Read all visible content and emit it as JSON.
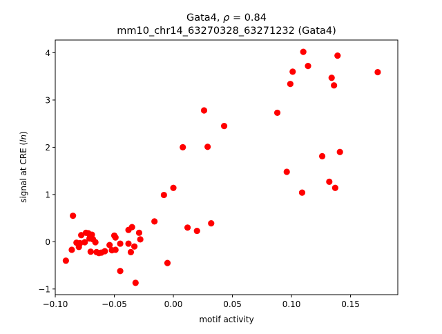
{
  "chart_data": {
    "type": "scatter",
    "title_line1_prefix": "Gata4, ",
    "title_line1_rho": "ρ",
    "title_line1_suffix": " = 0.84",
    "title_line2": "mm10_chr14_63270328_63271232 (Gata4)",
    "xlabel": "motif activity",
    "ylabel_prefix": "signal at CRE (",
    "ylabel_italic": "ln",
    "ylabel_suffix": ")",
    "xlim": [
      -0.1,
      0.19
    ],
    "ylim": [
      -1.12,
      4.27
    ],
    "xticks": [
      -0.1,
      -0.05,
      0.0,
      0.05,
      0.1,
      0.15
    ],
    "xtick_labels": [
      "−0.10",
      "−0.05",
      "0.00",
      "0.05",
      "0.10",
      "0.15"
    ],
    "yticks": [
      -1,
      0,
      1,
      2,
      3,
      4
    ],
    "ytick_labels": [
      "−1",
      "0",
      "1",
      "2",
      "3",
      "4"
    ],
    "grid": false,
    "marker_color": "#ff0000",
    "points": [
      {
        "x": -0.091,
        "y": -0.4
      },
      {
        "x": -0.086,
        "y": -0.17
      },
      {
        "x": -0.085,
        "y": 0.55
      },
      {
        "x": -0.082,
        "y": -0.02
      },
      {
        "x": -0.08,
        "y": -0.11
      },
      {
        "x": -0.079,
        "y": -0.03
      },
      {
        "x": -0.078,
        "y": 0.14
      },
      {
        "x": -0.075,
        "y": -0.01
      },
      {
        "x": -0.074,
        "y": 0.19
      },
      {
        "x": -0.072,
        "y": 0.18
      },
      {
        "x": -0.071,
        "y": 0.07
      },
      {
        "x": -0.07,
        "y": -0.21
      },
      {
        "x": -0.069,
        "y": 0.15
      },
      {
        "x": -0.068,
        "y": 0.05
      },
      {
        "x": -0.066,
        "y": -0.01
      },
      {
        "x": -0.065,
        "y": -0.22
      },
      {
        "x": -0.063,
        "y": -0.24
      },
      {
        "x": -0.061,
        "y": -0.23
      },
      {
        "x": -0.058,
        "y": -0.2
      },
      {
        "x": -0.054,
        "y": -0.07
      },
      {
        "x": -0.052,
        "y": -0.18
      },
      {
        "x": -0.05,
        "y": 0.13
      },
      {
        "x": -0.049,
        "y": 0.09
      },
      {
        "x": -0.049,
        "y": -0.17
      },
      {
        "x": -0.045,
        "y": -0.04
      },
      {
        "x": -0.045,
        "y": -0.62
      },
      {
        "x": -0.038,
        "y": 0.25
      },
      {
        "x": -0.038,
        "y": -0.04
      },
      {
        "x": -0.036,
        "y": -0.22
      },
      {
        "x": -0.035,
        "y": 0.31
      },
      {
        "x": -0.033,
        "y": -0.1
      },
      {
        "x": -0.032,
        "y": -0.87
      },
      {
        "x": -0.029,
        "y": 0.19
      },
      {
        "x": -0.028,
        "y": 0.05
      },
      {
        "x": -0.016,
        "y": 0.43
      },
      {
        "x": -0.008,
        "y": 0.99
      },
      {
        "x": -0.005,
        "y": -0.45
      },
      {
        "x": 0.0,
        "y": 1.14
      },
      {
        "x": 0.008,
        "y": 2.0
      },
      {
        "x": 0.012,
        "y": 0.3
      },
      {
        "x": 0.02,
        "y": 0.23
      },
      {
        "x": 0.026,
        "y": 2.78
      },
      {
        "x": 0.029,
        "y": 2.01
      },
      {
        "x": 0.032,
        "y": 0.39
      },
      {
        "x": 0.043,
        "y": 2.45
      },
      {
        "x": 0.088,
        "y": 2.73
      },
      {
        "x": 0.096,
        "y": 1.48
      },
      {
        "x": 0.099,
        "y": 3.34
      },
      {
        "x": 0.101,
        "y": 3.6
      },
      {
        "x": 0.109,
        "y": 1.04
      },
      {
        "x": 0.11,
        "y": 4.02
      },
      {
        "x": 0.114,
        "y": 3.72
      },
      {
        "x": 0.126,
        "y": 1.81
      },
      {
        "x": 0.132,
        "y": 1.27
      },
      {
        "x": 0.134,
        "y": 3.47
      },
      {
        "x": 0.136,
        "y": 3.31
      },
      {
        "x": 0.137,
        "y": 1.14
      },
      {
        "x": 0.139,
        "y": 3.94
      },
      {
        "x": 0.141,
        "y": 1.9
      },
      {
        "x": 0.173,
        "y": 3.59
      }
    ]
  }
}
